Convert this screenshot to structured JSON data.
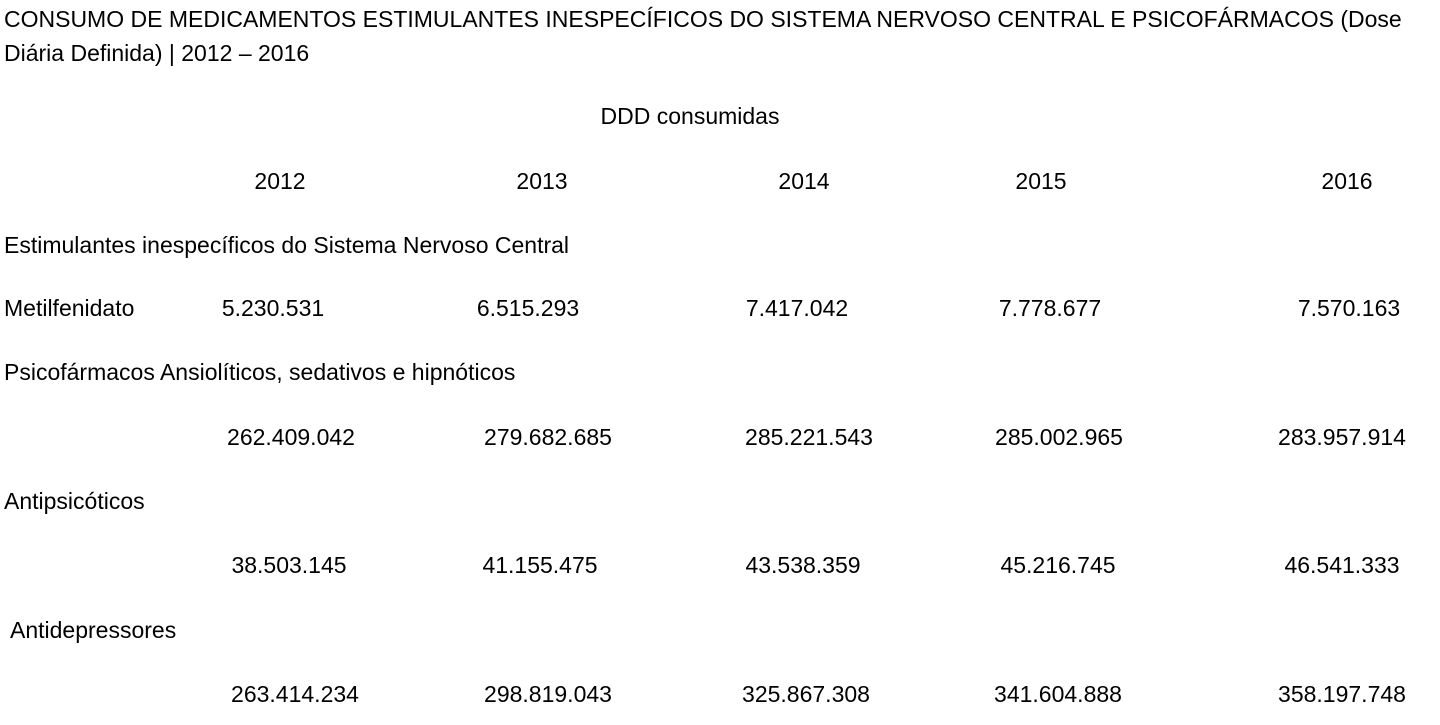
{
  "title": "CONSUMO DE MEDICAMENTOS ESTIMULANTES INESPECÍFICOS DO SISTEMA NERVOSO CENTRAL E PSICOFÁRMACOS (Dose Diária Definida) | 2012 – 2016",
  "unit_header": "DDD consumidas",
  "years": [
    "2012",
    "2013",
    "2014",
    "2015",
    "2016"
  ],
  "sections": [
    {
      "heading": "Estimulantes inespecíficos do Sistema Nervoso Central",
      "row_label": "Metilfenidato",
      "values": [
        "5.230.531",
        "6.515.293",
        "7.417.042",
        "7.778.677",
        "7.570.163"
      ]
    },
    {
      "heading": "Psicofármacos Ansiolíticos, sedativos e hipnóticos",
      "row_label": "",
      "values": [
        "262.409.042",
        "279.682.685",
        "285.221.543",
        "285.002.965",
        "283.957.914"
      ]
    },
    {
      "heading": "Antipsicóticos",
      "row_label": "",
      "values": [
        "38.503.145",
        "41.155.475",
        "43.538.359",
        "45.216.745",
        "46.541.333"
      ]
    },
    {
      "heading": "Antidepressores",
      "row_label": "",
      "values": [
        "263.414.234",
        "298.819.043",
        "325.867.308",
        "341.604.888",
        "358.197.748"
      ]
    }
  ]
}
